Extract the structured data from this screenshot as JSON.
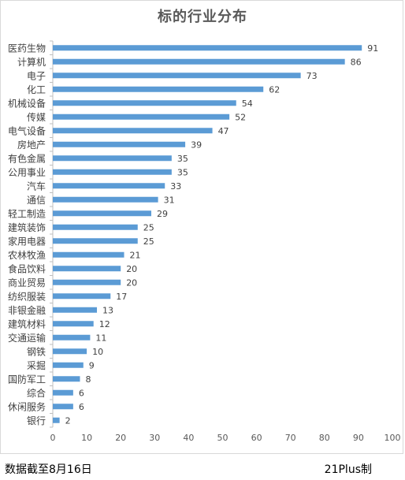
{
  "chart_data": {
    "type": "bar",
    "orientation": "horizontal",
    "title": "标的行业分布",
    "categories": [
      "医药生物",
      "计算机",
      "电子",
      "化工",
      "机械设备",
      "传媒",
      "电气设备",
      "房地产",
      "有色金属",
      "公用事业",
      "汽车",
      "通信",
      "轻工制造",
      "建筑装饰",
      "家用电器",
      "农林牧渔",
      "食品饮料",
      "商业贸易",
      "纺织服装",
      "非银金融",
      "建筑材料",
      "交通运输",
      "钢铁",
      "采掘",
      "国防军工",
      "综合",
      "休闲服务",
      "银行"
    ],
    "values": [
      91,
      86,
      73,
      62,
      54,
      52,
      47,
      39,
      35,
      35,
      33,
      31,
      29,
      25,
      25,
      21,
      20,
      20,
      17,
      13,
      12,
      11,
      10,
      9,
      8,
      6,
      6,
      2
    ],
    "xlim": [
      0,
      100
    ],
    "xticks": [
      0,
      10,
      20,
      30,
      40,
      50,
      60,
      70,
      80,
      90,
      100
    ],
    "data_labels": true,
    "grid": false,
    "legend": "none",
    "bar_color": "#5b9bd5"
  },
  "footer": {
    "left": "数据截至8月16日",
    "right": "21Plus制"
  }
}
